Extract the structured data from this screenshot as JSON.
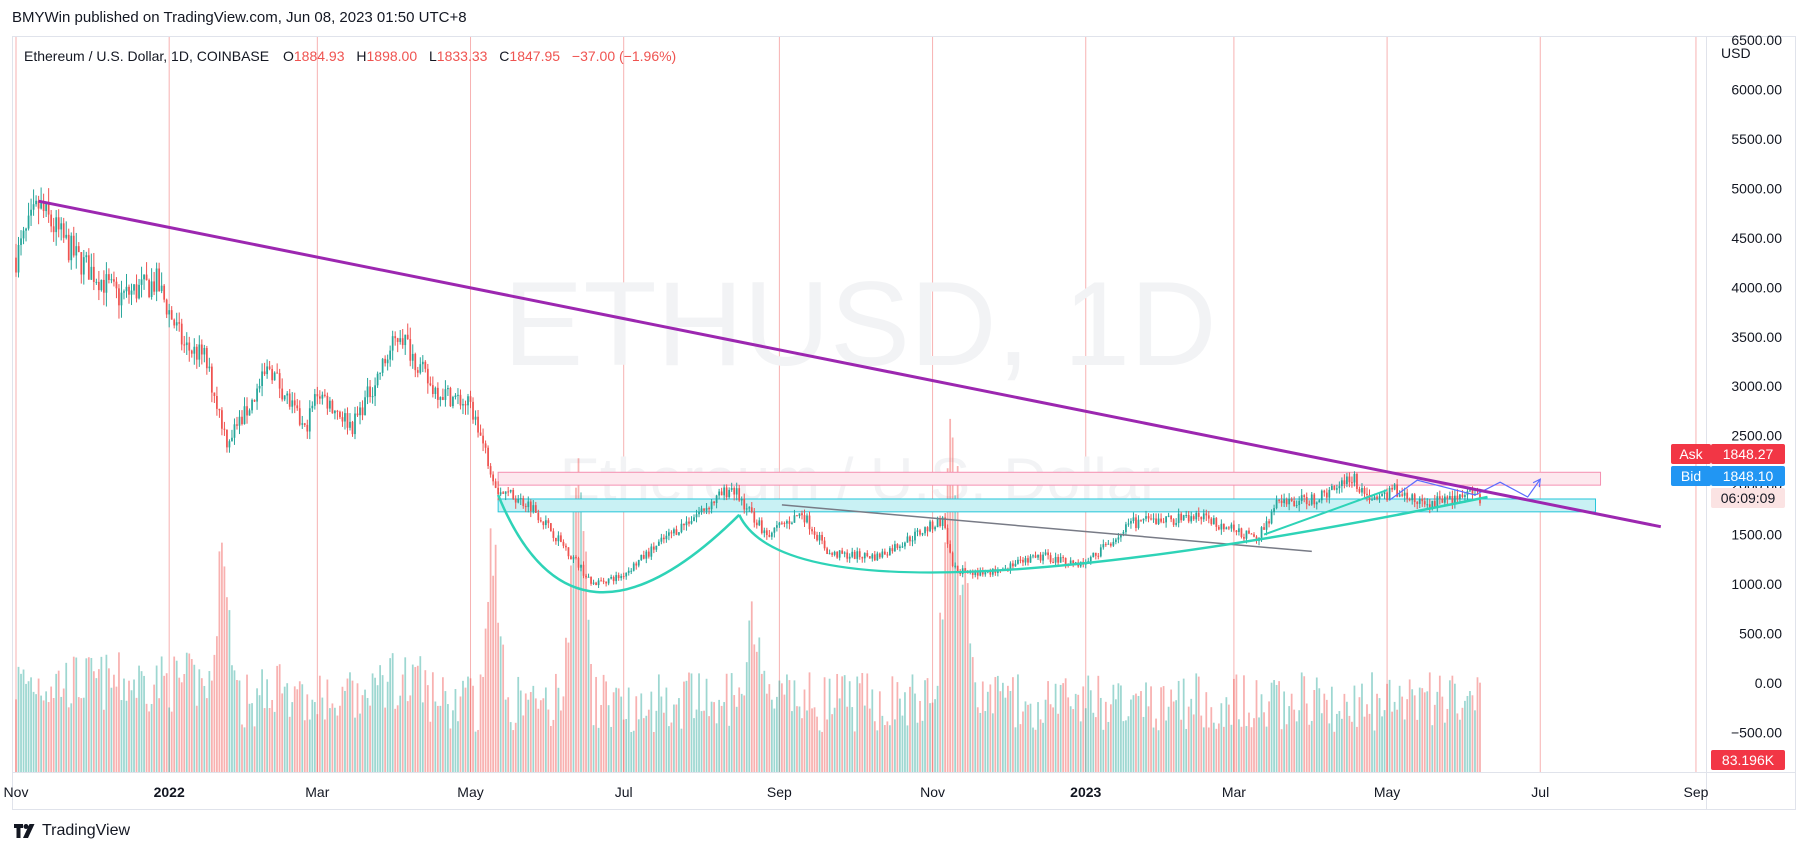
{
  "header": {
    "published": "BMYWin published on TradingView.com, Jun 08, 2023 01:50 UTC+8"
  },
  "legend": {
    "symbol": "Ethereum / U.S. Dollar, 1D, COINBASE",
    "open_label": "O",
    "open": "1884.93",
    "high_label": "H",
    "high": "1898.00",
    "low_label": "L",
    "low": "1833.33",
    "close_label": "C",
    "close": "1847.95",
    "change": "−37.00 (−1.96%)"
  },
  "watermark": {
    "ticker": "ETHUSD, 1D",
    "name": "Ethereum / U.S. Dollar"
  },
  "price_axis": {
    "currency": "USD",
    "ask_label": "Ask",
    "ask_value": "1848.27",
    "bid_label": "Bid",
    "bid_value": "1848.10",
    "countdown": "06:09:09",
    "volume_value": "83.196K"
  },
  "footer": {
    "brand": "TradingView"
  },
  "colors": {
    "up": "#26a69a",
    "down": "#ef5350",
    "trendline": "#9c27b0",
    "cup_curve": "#2ed3b7",
    "support_box": "#26c6da",
    "resistance_box": "#f48fb1",
    "projection": "#5b6cff",
    "ask_bg": "#f23645",
    "bid_bg": "#2196f3",
    "volume_label_bg": "#f23645"
  },
  "chart_data": {
    "type": "candlestick",
    "symbol": "ETHUSD",
    "interval": "1D",
    "ylim": [
      -900,
      6500
    ],
    "y_ticks": [
      6500,
      6000,
      5500,
      5000,
      4500,
      4000,
      3500,
      3000,
      2500,
      2000,
      1500,
      1000,
      500,
      0,
      -500
    ],
    "y_tick_labels": [
      "6500.00",
      "6000.00",
      "5500.00",
      "5000.00",
      "4500.00",
      "4000.00",
      "3500.00",
      "3000.00",
      "2500.00",
      "2000.00",
      "1500.00",
      "1000.00",
      "500.00",
      "0.00",
      "−500.00"
    ],
    "x_range": [
      "2021-11-01",
      "2023-09-05"
    ],
    "x_ticks": [
      {
        "date": "2021-11-01",
        "label": "Nov",
        "bold": false
      },
      {
        "date": "2022-01-01",
        "label": "2022",
        "bold": true
      },
      {
        "date": "2022-03-01",
        "label": "Mar",
        "bold": false
      },
      {
        "date": "2022-05-01",
        "label": "May",
        "bold": false
      },
      {
        "date": "2022-07-01",
        "label": "Jul",
        "bold": false
      },
      {
        "date": "2022-09-01",
        "label": "Sep",
        "bold": false
      },
      {
        "date": "2022-11-01",
        "label": "Nov",
        "bold": false
      },
      {
        "date": "2023-01-01",
        "label": "2023",
        "bold": true
      },
      {
        "date": "2023-03-01",
        "label": "Mar",
        "bold": false
      },
      {
        "date": "2023-05-01",
        "label": "May",
        "bold": false
      },
      {
        "date": "2023-07-01",
        "label": "Jul",
        "bold": false
      },
      {
        "date": "2023-09-01",
        "label": "Sep",
        "bold": false
      }
    ],
    "price_path": [
      [
        "2021-11-01",
        4300
      ],
      [
        "2021-11-10",
        4820
      ],
      [
        "2021-11-25",
        4300
      ],
      [
        "2021-12-04",
        4100
      ],
      [
        "2021-12-12",
        3900
      ],
      [
        "2021-12-27",
        4050
      ],
      [
        "2022-01-07",
        3400
      ],
      [
        "2022-01-15",
        3300
      ],
      [
        "2022-01-24",
        2450
      ],
      [
        "2022-02-01",
        2750
      ],
      [
        "2022-02-10",
        3200
      ],
      [
        "2022-02-24",
        2550
      ],
      [
        "2022-03-01",
        2950
      ],
      [
        "2022-03-15",
        2600
      ],
      [
        "2022-04-03",
        3550
      ],
      [
        "2022-04-15",
        3000
      ],
      [
        "2022-05-01",
        2800
      ],
      [
        "2022-05-12",
        1950
      ],
      [
        "2022-05-25",
        1800
      ],
      [
        "2022-06-13",
        1200
      ],
      [
        "2022-06-18",
        1000
      ],
      [
        "2022-06-30",
        1080
      ],
      [
        "2022-07-17",
        1450
      ],
      [
        "2022-08-13",
        1980
      ],
      [
        "2022-08-27",
        1500
      ],
      [
        "2022-09-10",
        1720
      ],
      [
        "2022-09-21",
        1300
      ],
      [
        "2022-10-10",
        1280
      ],
      [
        "2022-11-05",
        1650
      ],
      [
        "2022-11-09",
        1150
      ],
      [
        "2022-11-21",
        1100
      ],
      [
        "2022-12-15",
        1280
      ],
      [
        "2022-12-31",
        1200
      ],
      [
        "2023-01-20",
        1620
      ],
      [
        "2023-02-16",
        1680
      ],
      [
        "2023-03-10",
        1450
      ],
      [
        "2023-03-18",
        1800
      ],
      [
        "2023-04-05",
        1880
      ],
      [
        "2023-04-16",
        2100
      ],
      [
        "2023-04-25",
        1850
      ],
      [
        "2023-05-05",
        1950
      ],
      [
        "2023-05-15",
        1800
      ],
      [
        "2023-06-01",
        1900
      ],
      [
        "2023-06-07",
        1848
      ]
    ],
    "volume_peaks": [
      [
        "2022-01-22",
        280
      ],
      [
        "2022-05-10",
        300
      ],
      [
        "2022-06-13",
        380
      ],
      [
        "2022-11-09",
        460
      ],
      [
        "2022-11-14",
        230
      ],
      [
        "2022-08-22",
        210
      ]
    ],
    "annotations": {
      "descending_trendline": [
        [
          "2021-11-10",
          4870
        ],
        [
          "2023-08-18",
          1580
        ]
      ],
      "resistance_box": {
        "from": "2022-05-12",
        "to": "2023-07-25",
        "low": 2000,
        "high": 2130
      },
      "support_box": {
        "from": "2022-05-12",
        "to": "2023-07-23",
        "low": 1730,
        "high": 1860
      },
      "cup_left": [
        [
          "2022-05-12",
          1900
        ],
        [
          "2022-06-20",
          920
        ],
        [
          "2022-08-16",
          1700
        ]
      ],
      "cup_right": [
        [
          "2022-08-16",
          1700
        ],
        [
          "2022-11-10",
          1120
        ],
        [
          "2023-06-10",
          1880
        ]
      ],
      "neckline": [
        [
          "2022-09-02",
          1800
        ],
        [
          "2023-04-01",
          1330
        ]
      ],
      "rising_support": [
        [
          "2023-03-13",
          1500
        ],
        [
          "2023-05-01",
          1950
        ]
      ],
      "projection": [
        [
          "2023-05-02",
          1850
        ],
        [
          "2023-05-13",
          2050
        ],
        [
          "2023-06-05",
          1900
        ],
        [
          "2023-06-15",
          2030
        ],
        [
          "2023-06-26",
          1880
        ],
        [
          "2023-07-01",
          2060
        ]
      ]
    }
  }
}
